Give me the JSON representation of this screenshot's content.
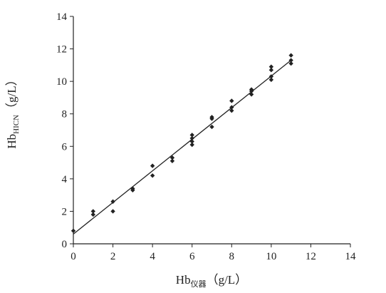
{
  "chart_data": {
    "type": "scatter",
    "title": "",
    "xlabel": "Hb",
    "xlabel_sub": "仪器",
    "xlabel_unit": "（g/L）",
    "ylabel": "Hb",
    "ylabel_sub": "HICN",
    "ylabel_unit": "（g/L）",
    "xlim": [
      0,
      14
    ],
    "ylim": [
      0,
      14
    ],
    "xticks": [
      "0",
      "2",
      "4",
      "6",
      "8",
      "10",
      "12",
      "14"
    ],
    "yticks": [
      "0",
      "2",
      "4",
      "6",
      "8",
      "10",
      "12",
      "14"
    ],
    "grid": false,
    "legend": "none",
    "marker_color": "#222222",
    "points": [
      {
        "x": 0,
        "y": 0.8
      },
      {
        "x": 1,
        "y": 1.8
      },
      {
        "x": 1,
        "y": 2.0
      },
      {
        "x": 2,
        "y": 2.0
      },
      {
        "x": 2,
        "y": 2.6
      },
      {
        "x": 3,
        "y": 3.3
      },
      {
        "x": 3,
        "y": 3.4
      },
      {
        "x": 4,
        "y": 4.2
      },
      {
        "x": 4,
        "y": 4.8
      },
      {
        "x": 5,
        "y": 5.1
      },
      {
        "x": 5,
        "y": 5.3
      },
      {
        "x": 6,
        "y": 6.1
      },
      {
        "x": 6,
        "y": 6.3
      },
      {
        "x": 6,
        "y": 6.5
      },
      {
        "x": 6,
        "y": 6.7
      },
      {
        "x": 7,
        "y": 7.2
      },
      {
        "x": 7,
        "y": 7.7
      },
      {
        "x": 7,
        "y": 7.8
      },
      {
        "x": 8,
        "y": 8.2
      },
      {
        "x": 8,
        "y": 8.4
      },
      {
        "x": 8,
        "y": 8.8
      },
      {
        "x": 9,
        "y": 9.2
      },
      {
        "x": 9,
        "y": 9.4
      },
      {
        "x": 9,
        "y": 9.5
      },
      {
        "x": 10,
        "y": 10.1
      },
      {
        "x": 10,
        "y": 10.3
      },
      {
        "x": 10,
        "y": 10.7
      },
      {
        "x": 10,
        "y": 10.9
      },
      {
        "x": 11,
        "y": 11.1
      },
      {
        "x": 11,
        "y": 11.3
      },
      {
        "x": 11,
        "y": 11.6
      }
    ],
    "fit_line": {
      "x": [
        0,
        11
      ],
      "y": [
        0.6,
        11.3
      ]
    }
  }
}
